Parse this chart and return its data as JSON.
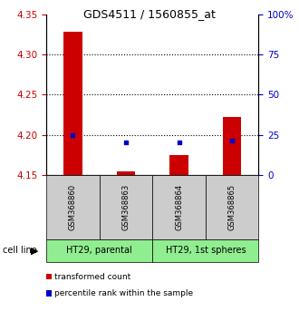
{
  "title": "GDS4511 / 1560855_at",
  "samples": [
    "GSM368860",
    "GSM368863",
    "GSM368864",
    "GSM368865"
  ],
  "groups": [
    {
      "name": "HT29, parental",
      "samples": [
        "GSM368860",
        "GSM368863"
      ],
      "color": "#90EE90"
    },
    {
      "name": "HT29, 1st spheres",
      "samples": [
        "GSM368864",
        "GSM368865"
      ],
      "color": "#90EE90"
    }
  ],
  "transformed_count": [
    4.328,
    4.155,
    4.175,
    4.222
  ],
  "percentile_rank": [
    25.0,
    20.5,
    20.5,
    21.5
  ],
  "ylim_left": [
    4.15,
    4.35
  ],
  "ylim_right": [
    0,
    100
  ],
  "yticks_left": [
    4.15,
    4.2,
    4.25,
    4.3,
    4.35
  ],
  "yticks_right": [
    0,
    25,
    50,
    75,
    100
  ],
  "ytick_labels_right": [
    "0",
    "25",
    "50",
    "75",
    "100%"
  ],
  "bar_color": "#CC0000",
  "dot_color": "#0000CC",
  "bar_bottom": 4.15,
  "left_ylabel_color": "#CC0000",
  "right_ylabel_color": "#0000CC",
  "grid_color": "black",
  "sample_box_color": "#CCCCCC",
  "group_box_color": "#90EE90",
  "legend_red_label": "transformed count",
  "legend_blue_label": "percentile rank within the sample",
  "cell_line_label": "cell line",
  "bar_width": 0.35,
  "grid_yticks": [
    4.2,
    4.25,
    4.3
  ]
}
